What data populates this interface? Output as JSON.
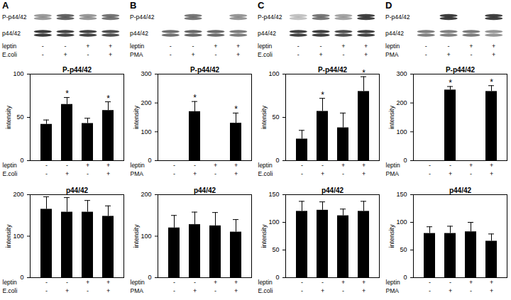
{
  "blots": [
    {
      "panel": "A",
      "rows": [
        "P-p44/42",
        "p44/42"
      ],
      "treatments": [
        {
          "name": "leptin",
          "values": [
            "-",
            "-",
            "+",
            "+"
          ]
        },
        {
          "name": "E.coli",
          "values": [
            "-",
            "+",
            "-",
            "+"
          ]
        }
      ]
    },
    {
      "panel": "B",
      "rows": [
        "P-p44/42",
        "p44/42"
      ],
      "treatments": [
        {
          "name": "leptin",
          "values": [
            "-",
            "-",
            "+",
            "+"
          ]
        },
        {
          "name": "PMA",
          "values": [
            "-",
            "+",
            "-",
            "+"
          ]
        }
      ]
    },
    {
      "panel": "C",
      "rows": [
        "P-p44/42",
        "p44/42"
      ],
      "treatments": [
        {
          "name": "leptin",
          "values": [
            "-",
            "-",
            "+",
            "+"
          ]
        },
        {
          "name": "E.coli",
          "values": [
            "-",
            "+",
            "-",
            "+"
          ]
        }
      ]
    },
    {
      "panel": "D",
      "rows": [
        "P-p44/42",
        "p44/42"
      ],
      "treatments": [
        {
          "name": "leptin",
          "values": [
            "-",
            "-",
            "+",
            "+"
          ]
        },
        {
          "name": "PMA",
          "values": [
            "-",
            "+",
            "-",
            "+"
          ]
        }
      ]
    }
  ],
  "chart_data": [
    {
      "type": "bar",
      "panel": "A",
      "title": "P-p44/42",
      "ylabel": "intensity",
      "color": "#000000",
      "categories": [
        null,
        null,
        null,
        null
      ],
      "values": [
        42,
        65,
        43,
        58
      ],
      "errors": [
        5,
        8,
        6,
        10
      ],
      "significance": [
        null,
        "*",
        null,
        "*"
      ],
      "ylim": [
        0,
        100
      ],
      "yticks": [
        0,
        50,
        100
      ],
      "treatments": [
        {
          "name": "leptin",
          "values": [
            "-",
            "-",
            "+",
            "+"
          ]
        },
        {
          "name": "E.coli",
          "values": [
            "-",
            "+",
            "-",
            "+"
          ]
        }
      ]
    },
    {
      "type": "bar",
      "panel": "A",
      "title": "p44/42",
      "ylabel": "intensity",
      "color": "#000000",
      "categories": [
        null,
        null,
        null,
        null
      ],
      "values": [
        165,
        158,
        158,
        148
      ],
      "errors": [
        30,
        35,
        28,
        25
      ],
      "significance": [
        null,
        null,
        null,
        null
      ],
      "ylim": [
        0,
        200
      ],
      "yticks": [
        0,
        100,
        200
      ],
      "treatments": [
        {
          "name": "leptin",
          "values": [
            "-",
            "-",
            "+",
            "+"
          ]
        },
        {
          "name": "E.coli",
          "values": [
            "-",
            "+",
            "-",
            "+"
          ]
        }
      ]
    },
    {
      "type": "bar",
      "panel": "B",
      "title": "P-p44/42",
      "ylabel": "intensity",
      "color": "#000000",
      "categories": [
        null,
        null,
        null,
        null
      ],
      "values": [
        0,
        170,
        0,
        130
      ],
      "errors": [
        null,
        35,
        null,
        35
      ],
      "significance": [
        null,
        "*",
        null,
        "*"
      ],
      "ylim": [
        0,
        300
      ],
      "yticks": [
        0,
        100,
        200,
        300
      ],
      "treatments": [
        {
          "name": "leptin",
          "values": [
            "-",
            "-",
            "+",
            "+"
          ]
        },
        {
          "name": "PMA",
          "values": [
            "-",
            "+",
            "-",
            "+"
          ]
        }
      ]
    },
    {
      "type": "bar",
      "panel": "B",
      "title": "p44/42",
      "ylabel": "intensity",
      "color": "#000000",
      "categories": [
        null,
        null,
        null,
        null
      ],
      "values": [
        120,
        128,
        125,
        110
      ],
      "errors": [
        30,
        30,
        32,
        30
      ],
      "significance": [
        null,
        null,
        null,
        null
      ],
      "ylim": [
        0,
        200
      ],
      "yticks": [
        0,
        100,
        200
      ],
      "treatments": [
        {
          "name": "leptin",
          "values": [
            "-",
            "-",
            "+",
            "+"
          ]
        },
        {
          "name": "PMA",
          "values": [
            "-",
            "+",
            "-",
            "+"
          ]
        }
      ]
    },
    {
      "type": "bar",
      "panel": "C",
      "title": "P-p44/42",
      "ylabel": "intensity",
      "color": "#000000",
      "categories": [
        null,
        null,
        null,
        null
      ],
      "values": [
        25,
        57,
        38,
        80
      ],
      "errors": [
        10,
        15,
        17,
        17
      ],
      "significance": [
        null,
        "*",
        null,
        "*"
      ],
      "ylim": [
        0,
        100
      ],
      "yticks": [
        0,
        50,
        100
      ],
      "treatments": [
        {
          "name": "leptin",
          "values": [
            "-",
            "-",
            "+",
            "+"
          ]
        },
        {
          "name": "E.coli",
          "values": [
            "-",
            "+",
            "-",
            "+"
          ]
        }
      ]
    },
    {
      "type": "bar",
      "panel": "C",
      "title": "p44/42",
      "ylabel": "intensity",
      "color": "#000000",
      "categories": [
        null,
        null,
        null,
        null
      ],
      "values": [
        120,
        122,
        112,
        120
      ],
      "errors": [
        18,
        15,
        12,
        18
      ],
      "significance": [
        null,
        null,
        null,
        null
      ],
      "ylim": [
        0,
        150
      ],
      "yticks": [
        0,
        50,
        100,
        150
      ],
      "treatments": [
        {
          "name": "leptin",
          "values": [
            "-",
            "-",
            "+",
            "+"
          ]
        },
        {
          "name": "E.coli",
          "values": [
            "-",
            "+",
            "-",
            "+"
          ]
        }
      ]
    },
    {
      "type": "bar",
      "panel": "D",
      "title": "P-p44/42",
      "ylabel": "intensity",
      "color": "#000000",
      "categories": [
        null,
        null,
        null,
        null
      ],
      "values": [
        0,
        245,
        0,
        240
      ],
      "errors": [
        null,
        12,
        null,
        20
      ],
      "significance": [
        null,
        "*",
        null,
        "*"
      ],
      "ylim": [
        0,
        300
      ],
      "yticks": [
        0,
        100,
        200,
        300
      ],
      "treatments": [
        {
          "name": "leptin",
          "values": [
            "-",
            "-",
            "+",
            "+"
          ]
        },
        {
          "name": "PMA",
          "values": [
            "-",
            "+",
            "-",
            "+"
          ]
        }
      ]
    },
    {
      "type": "bar",
      "panel": "D",
      "title": "p44/42",
      "ylabel": "intensity",
      "color": "#000000",
      "categories": [
        null,
        null,
        null,
        null
      ],
      "values": [
        80,
        80,
        83,
        66
      ],
      "errors": [
        12,
        13,
        17,
        13
      ],
      "significance": [
        null,
        null,
        null,
        null
      ],
      "ylim": [
        0,
        150
      ],
      "yticks": [
        0,
        50,
        100,
        150
      ],
      "treatments": [
        {
          "name": "leptin",
          "values": [
            "-",
            "-",
            "+",
            "+"
          ]
        },
        {
          "name": "PMA",
          "values": [
            "-",
            "+",
            "-",
            "+"
          ]
        }
      ]
    }
  ]
}
